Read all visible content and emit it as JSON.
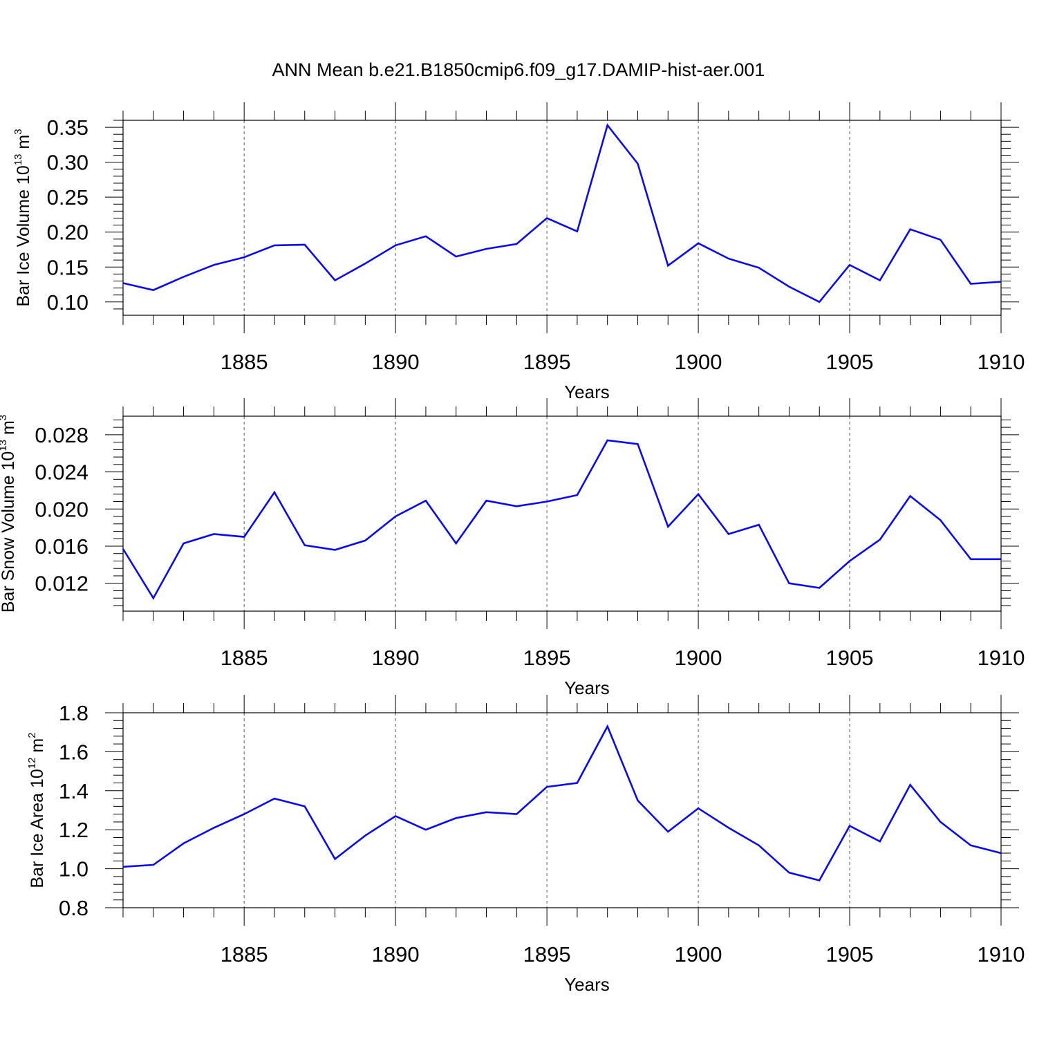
{
  "title": "ANN Mean b.e21.B1850cmip6.f09_g17.DAMIP-hist-aer.001",
  "colors": {
    "series": "#0a0af0",
    "axis": "#000000",
    "grid": "#555555"
  },
  "chart_data": [
    {
      "type": "line",
      "ylabel": {
        "main": "Bar Ice Volume 10",
        "exp": "13",
        "unit": " m",
        "unit_exp": "3"
      },
      "xlabel": "Years",
      "xlim": [
        1881,
        1910
      ],
      "ylim": [
        0.081,
        0.36
      ],
      "yticks": [
        0.1,
        0.15,
        0.2,
        0.25,
        0.3,
        0.35
      ],
      "ytick_labels": [
        "0.10",
        "0.15",
        "0.20",
        "0.25",
        "0.30",
        "0.35"
      ],
      "xticks": [
        1885,
        1890,
        1895,
        1900,
        1905,
        1910
      ],
      "xtick_labels": [
        "1885",
        "1890",
        "1895",
        "1900",
        "1905",
        "1910"
      ],
      "x": [
        1881,
        1882,
        1883,
        1884,
        1885,
        1886,
        1887,
        1888,
        1889,
        1890,
        1891,
        1892,
        1893,
        1894,
        1895,
        1896,
        1897,
        1898,
        1899,
        1900,
        1901,
        1902,
        1903,
        1904,
        1905,
        1906,
        1907,
        1908,
        1909,
        1910
      ],
      "values": [
        0.127,
        0.117,
        0.136,
        0.153,
        0.164,
        0.181,
        0.182,
        0.131,
        0.155,
        0.181,
        0.194,
        0.165,
        0.176,
        0.183,
        0.22,
        0.201,
        0.353,
        0.298,
        0.152,
        0.184,
        0.162,
        0.149,
        0.122,
        0.1,
        0.153,
        0.131,
        0.204,
        0.189,
        0.126,
        0.129
      ]
    },
    {
      "type": "line",
      "ylabel": {
        "main": "Bar Snow Volume 10",
        "exp": "13",
        "unit": " m",
        "unit_exp": "3"
      },
      "xlabel": "Years",
      "xlim": [
        1881,
        1910
      ],
      "ylim": [
        0.009,
        0.03
      ],
      "yticks": [
        0.012,
        0.016,
        0.02,
        0.024,
        0.028
      ],
      "ytick_labels": [
        "0.012",
        "0.016",
        "0.020",
        "0.024",
        "0.028"
      ],
      "xticks": [
        1885,
        1890,
        1895,
        1900,
        1905,
        1910
      ],
      "xtick_labels": [
        "1885",
        "1890",
        "1895",
        "1900",
        "1905",
        "1910"
      ],
      "x": [
        1881,
        1882,
        1883,
        1884,
        1885,
        1886,
        1887,
        1888,
        1889,
        1890,
        1891,
        1892,
        1893,
        1894,
        1895,
        1896,
        1897,
        1898,
        1899,
        1900,
        1901,
        1902,
        1903,
        1904,
        1905,
        1906,
        1907,
        1908,
        1909,
        1910
      ],
      "values": [
        0.0157,
        0.0104,
        0.0163,
        0.0173,
        0.017,
        0.0218,
        0.0161,
        0.0156,
        0.0166,
        0.0192,
        0.0209,
        0.0163,
        0.0209,
        0.0203,
        0.0208,
        0.0215,
        0.0274,
        0.027,
        0.0181,
        0.0216,
        0.0173,
        0.0183,
        0.012,
        0.0115,
        0.0144,
        0.0167,
        0.0214,
        0.0188,
        0.0146,
        0.0146
      ]
    },
    {
      "type": "line",
      "ylabel": {
        "main": "Bar Ice Area 10",
        "exp": "12",
        "unit": " m",
        "unit_exp": "2"
      },
      "xlabel": "Years",
      "xlim": [
        1881,
        1910
      ],
      "ylim": [
        0.8,
        1.8
      ],
      "yticks": [
        0.8,
        1.0,
        1.2,
        1.4,
        1.6,
        1.8
      ],
      "ytick_labels": [
        "0.8",
        "1.0",
        "1.2",
        "1.4",
        "1.6",
        "1.8"
      ],
      "xticks": [
        1885,
        1890,
        1895,
        1900,
        1905,
        1910
      ],
      "xtick_labels": [
        "1885",
        "1890",
        "1895",
        "1900",
        "1905",
        "1910"
      ],
      "x": [
        1881,
        1882,
        1883,
        1884,
        1885,
        1886,
        1887,
        1888,
        1889,
        1890,
        1891,
        1892,
        1893,
        1894,
        1895,
        1896,
        1897,
        1898,
        1899,
        1900,
        1901,
        1902,
        1903,
        1904,
        1905,
        1906,
        1907,
        1908,
        1909,
        1910
      ],
      "values": [
        1.01,
        1.02,
        1.13,
        1.21,
        1.28,
        1.36,
        1.32,
        1.05,
        1.17,
        1.27,
        1.2,
        1.26,
        1.29,
        1.28,
        1.42,
        1.44,
        1.73,
        1.35,
        1.19,
        1.31,
        1.21,
        1.12,
        0.98,
        0.94,
        1.22,
        1.14,
        1.43,
        1.24,
        1.12,
        1.08
      ]
    }
  ]
}
